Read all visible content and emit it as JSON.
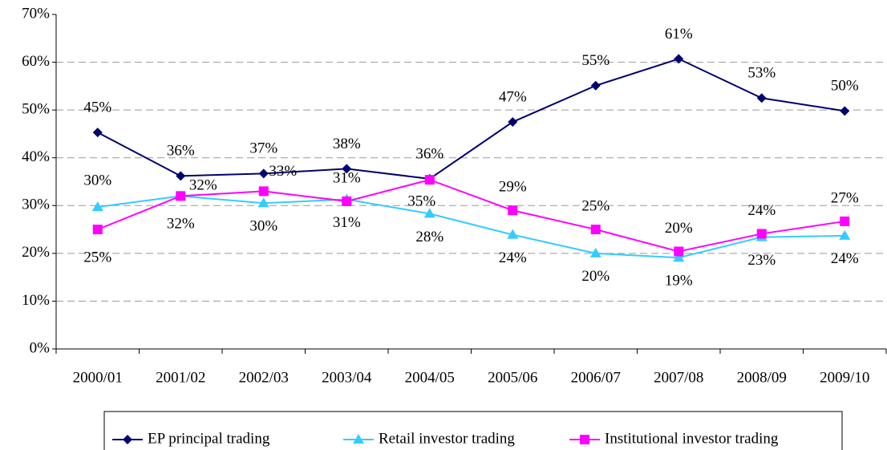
{
  "chart_data": {
    "type": "line",
    "categories": [
      "2000/01",
      "2001/02",
      "2002/03",
      "2003/04",
      "2004/05",
      "2005/06",
      "2006/07",
      "2007/08",
      "2008/09",
      "2009/10"
    ],
    "series": [
      {
        "name": "EP principal trading",
        "color": "#00006e",
        "marker": "diamond",
        "values": [
          45.3,
          36.2,
          36.7,
          37.7,
          35.6,
          47.5,
          55.1,
          60.7,
          52.5,
          49.8
        ],
        "value_labels": [
          "45%",
          "36%",
          "37%",
          "38%",
          "36%",
          "47%",
          "55%",
          "61%",
          "53%",
          "50%"
        ]
      },
      {
        "name": "Retail investor trading",
        "color": "#33ccff",
        "marker": "triangle",
        "values": [
          29.7,
          32.0,
          30.5,
          31.3,
          28.3,
          23.9,
          20.0,
          19.1,
          23.4,
          23.7
        ],
        "value_labels": [
          "30%",
          "32%",
          "30%",
          "31%",
          "28%",
          "24%",
          "20%",
          "19%",
          "23%",
          "24%"
        ]
      },
      {
        "name": "Institutional investor trading",
        "color": "#ff00ff",
        "marker": "square",
        "values": [
          25.0,
          32.0,
          33.0,
          30.9,
          35.4,
          29.0,
          25.0,
          20.4,
          24.1,
          26.7
        ],
        "value_labels": [
          "25%",
          "32%",
          "33%",
          "31%",
          "35%",
          "29%",
          "25%",
          "20%",
          "24%",
          "27%"
        ]
      }
    ],
    "ylim": [
      0,
      70
    ],
    "yticks": [
      {
        "value": 0,
        "label": "0%"
      },
      {
        "value": 10,
        "label": "10%"
      },
      {
        "value": 20,
        "label": "20%"
      },
      {
        "value": 30,
        "label": "30%"
      },
      {
        "value": 40,
        "label": "40%"
      },
      {
        "value": 50,
        "label": "50%"
      },
      {
        "value": 60,
        "label": "60%"
      },
      {
        "value": 70,
        "label": "70%"
      }
    ],
    "grid": true,
    "legend": "bottom"
  }
}
